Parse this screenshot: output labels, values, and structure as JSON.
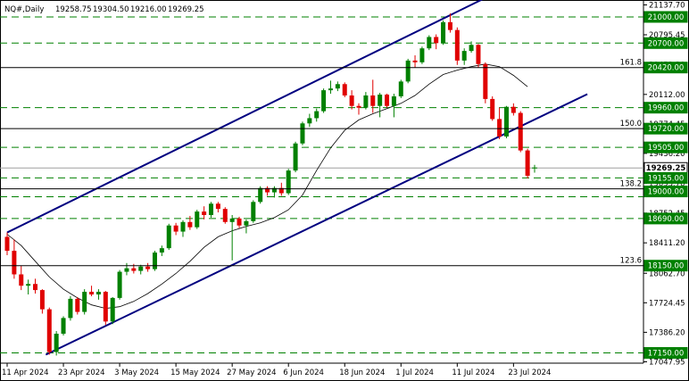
{
  "chart_data": {
    "type": "candlestick",
    "header": {
      "symbol": "NQ#,Daily",
      "open": "19258.75",
      "high": "19304.50",
      "low": "19216.00",
      "close": "19269.25"
    },
    "y_range": [
      17047.95,
      21137.7
    ],
    "y_ticks": [
      {
        "v": 21137.7,
        "t": "21137.70"
      },
      {
        "v": 20795.45,
        "t": "20795.45"
      },
      {
        "v": 20453.2,
        "t": "20453.20"
      },
      {
        "v": 20112.0,
        "t": "20112.00"
      },
      {
        "v": 19774.45,
        "t": "19774.45"
      },
      {
        "v": 19436.2,
        "t": "19436.20"
      },
      {
        "v": 19093.7,
        "t": "19093.70"
      },
      {
        "v": 18752.45,
        "t": "18752.45"
      },
      {
        "v": 18411.2,
        "t": "18411.20"
      },
      {
        "v": 18062.7,
        "t": "18062.70"
      },
      {
        "v": 17724.45,
        "t": "17724.45"
      },
      {
        "v": 17386.2,
        "t": "17386.20"
      },
      {
        "v": 17047.95,
        "t": "17047.95"
      }
    ],
    "x_labels": [
      "11 Apr 2024",
      "23 Apr 2024",
      "3 May 2024",
      "15 May 2024",
      "27 May 2024",
      "6 Jun 2024",
      "18 Jun 2024",
      "1 Jul 2024",
      "11 Jul 2024",
      "23 Jul 2024"
    ],
    "x_label_index": [
      0,
      8,
      16,
      24,
      32,
      40,
      48,
      56,
      64,
      72
    ],
    "levels": [
      {
        "v": 21000,
        "t": "21000.00",
        "style": "green"
      },
      {
        "v": 20700,
        "t": "20700.00",
        "style": "green"
      },
      {
        "v": 20420,
        "t": "20420.00",
        "style": "green"
      },
      {
        "v": 19960,
        "t": "19960.00",
        "style": "green"
      },
      {
        "v": 19720,
        "t": "19720.00",
        "style": "green"
      },
      {
        "v": 19505,
        "t": "19505.00",
        "style": "green"
      },
      {
        "v": 19269.25,
        "t": "19269.25",
        "style": "current"
      },
      {
        "v": 19155,
        "t": "19155.00",
        "style": "green"
      },
      {
        "v": 19000,
        "t": "19000.00",
        "style": "green"
      },
      {
        "v": 18690,
        "t": "18690.00",
        "style": "green"
      },
      {
        "v": 18150,
        "t": "18150.00",
        "style": "green"
      },
      {
        "v": 17150,
        "t": "17150.00",
        "style": "green"
      }
    ],
    "fib_levels": [
      {
        "v": 20420,
        "t": "161.8"
      },
      {
        "v": 19720,
        "t": "150.0"
      },
      {
        "v": 19030,
        "t": "138.2"
      },
      {
        "v": 18150,
        "t": "123.6"
      }
    ],
    "green_dashed_lines": [
      21000,
      20700,
      19960,
      19505,
      19155,
      18940,
      18690,
      17150
    ],
    "channel": [
      {
        "from": [
          0,
          18530
        ],
        "to": [
          68.8,
          21250
        ]
      },
      {
        "from": [
          5.5,
          17130
        ],
        "to": [
          82.5,
          20115
        ]
      }
    ],
    "candles": [
      [
        18480,
        18530,
        18270,
        18320
      ],
      [
        18320,
        18450,
        18000,
        18050
      ],
      [
        18050,
        18150,
        17870,
        17920
      ],
      [
        17920,
        17990,
        17820,
        17940
      ],
      [
        17940,
        18000,
        17830,
        17870
      ],
      [
        17870,
        17880,
        17600,
        17650
      ],
      [
        17650,
        17670,
        17130,
        17160
      ],
      [
        17160,
        17400,
        17120,
        17370
      ],
      [
        17370,
        17570,
        17350,
        17550
      ],
      [
        17550,
        17800,
        17520,
        17770
      ],
      [
        17770,
        17790,
        17590,
        17620
      ],
      [
        17620,
        17880,
        17590,
        17850
      ],
      [
        17850,
        17920,
        17800,
        17820
      ],
      [
        17820,
        17880,
        17760,
        17850
      ],
      [
        17850,
        17860,
        17470,
        17510
      ],
      [
        17510,
        17790,
        17480,
        17780
      ],
      [
        17780,
        18100,
        17760,
        18080
      ],
      [
        18080,
        18180,
        18040,
        18120
      ],
      [
        18120,
        18170,
        18060,
        18090
      ],
      [
        18090,
        18160,
        18050,
        18140
      ],
      [
        18140,
        18180,
        18080,
        18110
      ],
      [
        18110,
        18320,
        18090,
        18300
      ],
      [
        18300,
        18380,
        18260,
        18350
      ],
      [
        18350,
        18630,
        18330,
        18610
      ],
      [
        18610,
        18640,
        18500,
        18540
      ],
      [
        18540,
        18670,
        18480,
        18650
      ],
      [
        18650,
        18720,
        18560,
        18590
      ],
      [
        18590,
        18790,
        18570,
        18770
      ],
      [
        18770,
        18830,
        18680,
        18730
      ],
      [
        18730,
        18880,
        18700,
        18860
      ],
      [
        18860,
        18880,
        18760,
        18800
      ],
      [
        18800,
        18820,
        18630,
        18650
      ],
      [
        18650,
        18730,
        18210,
        18690
      ],
      [
        18690,
        18710,
        18580,
        18610
      ],
      [
        18610,
        18680,
        18520,
        18660
      ],
      [
        18660,
        18900,
        18640,
        18880
      ],
      [
        18880,
        19060,
        18860,
        19040
      ],
      [
        19040,
        19060,
        18950,
        18990
      ],
      [
        18990,
        19060,
        18930,
        19040
      ],
      [
        19040,
        19100,
        18950,
        18980
      ],
      [
        18980,
        19260,
        18960,
        19240
      ],
      [
        19240,
        19570,
        19220,
        19550
      ],
      [
        19550,
        19800,
        19530,
        19780
      ],
      [
        19780,
        19890,
        19740,
        19840
      ],
      [
        19840,
        19950,
        19800,
        19920
      ],
      [
        19920,
        20180,
        19900,
        20160
      ],
      [
        20160,
        20270,
        20120,
        20180
      ],
      [
        20180,
        20260,
        20150,
        20230
      ],
      [
        20230,
        20250,
        20080,
        20100
      ],
      [
        20100,
        20160,
        19940,
        19980
      ],
      [
        19980,
        20010,
        19880,
        19960
      ],
      [
        19960,
        20140,
        19940,
        20100
      ],
      [
        20100,
        20280,
        19900,
        19980
      ],
      [
        19980,
        20130,
        19850,
        20110
      ],
      [
        20110,
        20120,
        19960,
        19980
      ],
      [
        19980,
        20120,
        19850,
        20090
      ],
      [
        20090,
        20280,
        20070,
        20260
      ],
      [
        20260,
        20520,
        20240,
        20500
      ],
      [
        20500,
        20560,
        20420,
        20480
      ],
      [
        20480,
        20660,
        20460,
        20640
      ],
      [
        20640,
        20790,
        20620,
        20770
      ],
      [
        20770,
        20800,
        20630,
        20700
      ],
      [
        20700,
        20960,
        20680,
        20940
      ],
      [
        20940,
        21040,
        20820,
        20850
      ],
      [
        20850,
        20880,
        20450,
        20500
      ],
      [
        20500,
        20640,
        20450,
        20610
      ],
      [
        20610,
        20720,
        20590,
        20680
      ],
      [
        20680,
        20690,
        20420,
        20460
      ],
      [
        20460,
        20480,
        20010,
        20060
      ],
      [
        20060,
        20090,
        19810,
        19830
      ],
      [
        19830,
        19960,
        19600,
        19630
      ],
      [
        19630,
        19980,
        19610,
        19970
      ],
      [
        19970,
        20010,
        19870,
        19900
      ],
      [
        19900,
        19920,
        19450,
        19470
      ],
      [
        19470,
        19490,
        19150,
        19180
      ],
      [
        19258.75,
        19304.5,
        19216,
        19269.25
      ]
    ],
    "ma": [
      [
        0,
        18510
      ],
      [
        2,
        18380
      ],
      [
        4,
        18200
      ],
      [
        6,
        18020
      ],
      [
        8,
        17880
      ],
      [
        10,
        17780
      ],
      [
        12,
        17700
      ],
      [
        14,
        17660
      ],
      [
        16,
        17680
      ],
      [
        18,
        17740
      ],
      [
        20,
        17830
      ],
      [
        22,
        17940
      ],
      [
        24,
        18060
      ],
      [
        26,
        18200
      ],
      [
        28,
        18360
      ],
      [
        30,
        18480
      ],
      [
        32,
        18550
      ],
      [
        34,
        18600
      ],
      [
        36,
        18640
      ],
      [
        38,
        18700
      ],
      [
        40,
        18790
      ],
      [
        42,
        18960
      ],
      [
        44,
        19240
      ],
      [
        46,
        19500
      ],
      [
        48,
        19700
      ],
      [
        50,
        19820
      ],
      [
        52,
        19890
      ],
      [
        54,
        19950
      ],
      [
        56,
        20010
      ],
      [
        58,
        20100
      ],
      [
        60,
        20230
      ],
      [
        62,
        20340
      ],
      [
        64,
        20390
      ],
      [
        66,
        20430
      ],
      [
        68,
        20460
      ],
      [
        70,
        20430
      ],
      [
        72,
        20330
      ],
      [
        74,
        20200
      ]
    ]
  }
}
